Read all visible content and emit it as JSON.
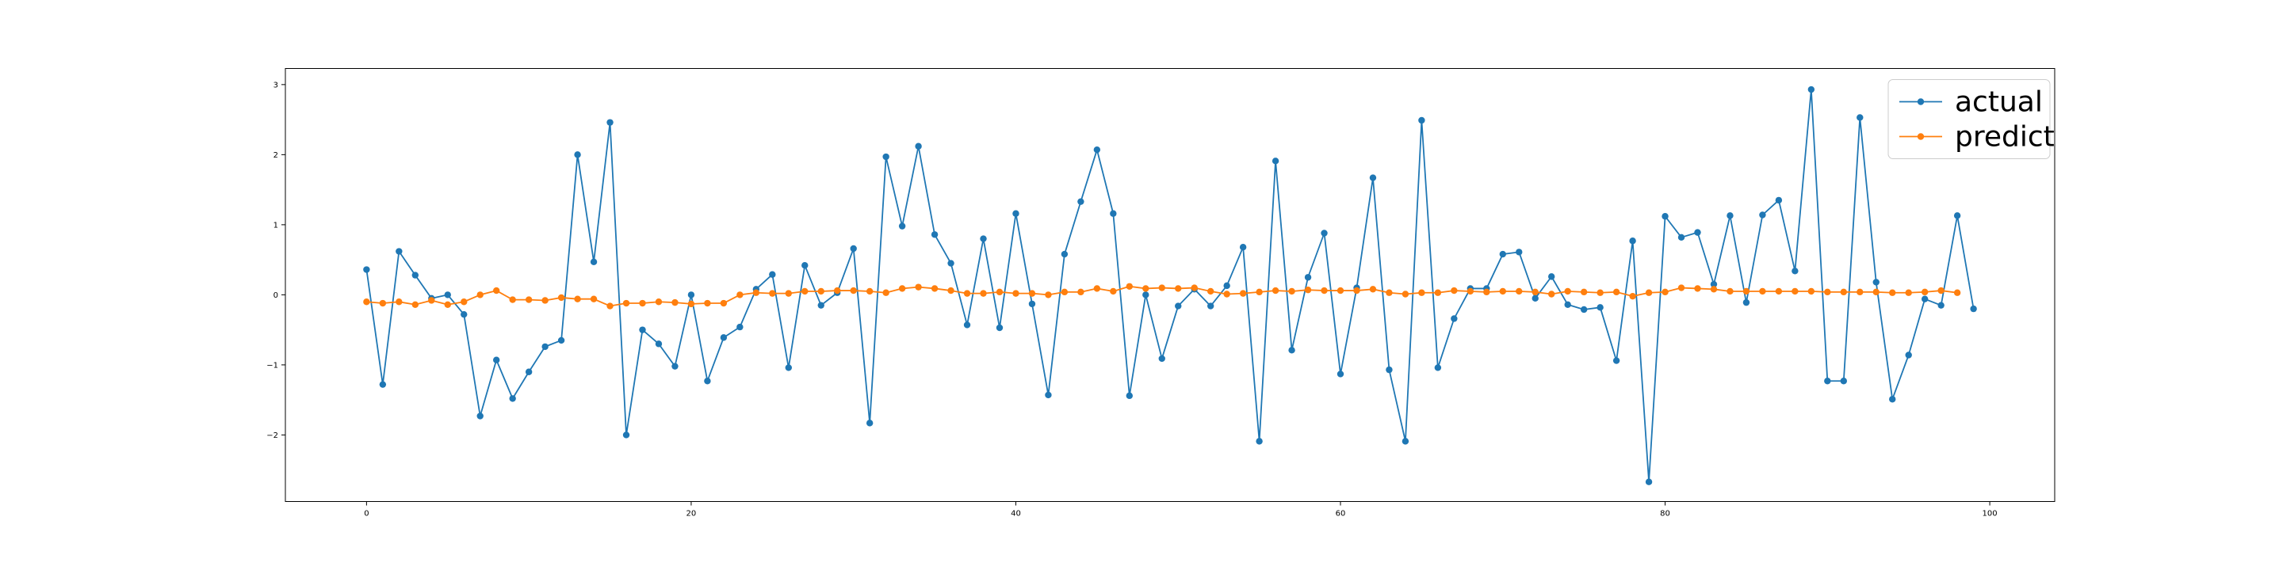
{
  "chart_data": {
    "type": "line",
    "title": "",
    "xlabel": "",
    "ylabel": "",
    "xlim": [
      -5,
      104
    ],
    "ylim": [
      -2.95,
      3.23
    ],
    "xticks": [
      0,
      20,
      40,
      60,
      80,
      100
    ],
    "yticks": [
      -2,
      -1,
      0,
      1,
      2,
      3
    ],
    "x_tick_labels": [
      "0",
      "20",
      "40",
      "60",
      "80",
      "100"
    ],
    "y_tick_labels": [
      "−2",
      "−1",
      "0",
      "1",
      "2",
      "3"
    ],
    "grid": false,
    "legend_position": "top-right",
    "series": [
      {
        "name": "actual",
        "color": "#1f77b4",
        "x": [
          0,
          1,
          2,
          3,
          4,
          5,
          6,
          7,
          8,
          9,
          10,
          11,
          12,
          13,
          14,
          15,
          16,
          17,
          18,
          19,
          20,
          21,
          22,
          23,
          24,
          25,
          26,
          27,
          28,
          29,
          30,
          31,
          32,
          33,
          34,
          35,
          36,
          37,
          38,
          39,
          40,
          41,
          42,
          43,
          44,
          45,
          46,
          47,
          48,
          49,
          50,
          51,
          52,
          53,
          54,
          55,
          56,
          57,
          58,
          59,
          60,
          61,
          62,
          63,
          64,
          65,
          66,
          67,
          68,
          69,
          70,
          71,
          72,
          73,
          74,
          75,
          76,
          77,
          78,
          79,
          80,
          81,
          82,
          83,
          84,
          85,
          86,
          87,
          88,
          89,
          90,
          91,
          92,
          93,
          94,
          95,
          96,
          97,
          98,
          99
        ],
        "values": [
          0.36,
          -1.28,
          0.62,
          0.28,
          -0.05,
          0.0,
          -0.28,
          -1.73,
          -0.93,
          -1.48,
          -1.1,
          -0.74,
          -0.65,
          2.0,
          0.47,
          2.46,
          -2.0,
          -0.5,
          -0.7,
          -1.02,
          0.0,
          -1.23,
          -0.61,
          -0.46,
          0.08,
          0.29,
          -1.04,
          0.42,
          -0.15,
          0.03,
          0.66,
          -1.83,
          1.97,
          0.98,
          2.12,
          0.86,
          0.45,
          -0.43,
          0.8,
          -0.47,
          1.16,
          -0.13,
          -1.43,
          0.58,
          1.33,
          2.07,
          1.16,
          -1.44,
          0.0,
          -0.91,
          -0.16,
          0.08,
          -0.16,
          0.13,
          0.68,
          -2.09,
          1.91,
          -0.79,
          0.25,
          0.88,
          -1.13,
          0.1,
          1.67,
          -1.07,
          -2.09,
          2.49,
          -1.04,
          -0.34,
          0.09,
          0.09,
          0.58,
          0.61,
          -0.05,
          0.26,
          -0.14,
          -0.21,
          -0.18,
          -0.94,
          0.77,
          -2.67,
          1.12,
          0.82,
          0.89,
          0.15,
          1.13,
          -0.11,
          1.14,
          1.35,
          0.34,
          2.93,
          -1.23,
          -1.23,
          2.53,
          0.18,
          -1.49,
          -0.86,
          -0.06,
          -0.15,
          1.13,
          -0.2
        ]
      },
      {
        "name": "predict",
        "color": "#ff7f0e",
        "x": [
          0,
          1,
          2,
          3,
          4,
          5,
          6,
          7,
          8,
          9,
          10,
          11,
          12,
          13,
          14,
          15,
          16,
          17,
          18,
          19,
          20,
          21,
          22,
          23,
          24,
          25,
          26,
          27,
          28,
          29,
          30,
          31,
          32,
          33,
          34,
          35,
          36,
          37,
          38,
          39,
          40,
          41,
          42,
          43,
          44,
          45,
          46,
          47,
          48,
          49,
          50,
          51,
          52,
          53,
          54,
          55,
          56,
          57,
          58,
          59,
          60,
          61,
          62,
          63,
          64,
          65,
          66,
          67,
          68,
          69,
          70,
          71,
          72,
          73,
          74,
          75,
          76,
          77,
          78,
          79,
          80,
          81,
          82,
          83,
          84,
          85,
          86,
          87,
          88,
          89,
          90,
          91,
          92,
          93,
          94,
          95,
          96,
          97,
          98
        ],
        "values": [
          -0.1,
          -0.12,
          -0.1,
          -0.14,
          -0.08,
          -0.14,
          -0.1,
          0.0,
          0.06,
          -0.07,
          -0.07,
          -0.08,
          -0.04,
          -0.06,
          -0.06,
          -0.16,
          -0.12,
          -0.12,
          -0.1,
          -0.11,
          -0.13,
          -0.12,
          -0.12,
          0.0,
          0.03,
          0.02,
          0.02,
          0.05,
          0.05,
          0.06,
          0.06,
          0.05,
          0.03,
          0.09,
          0.11,
          0.09,
          0.06,
          0.02,
          0.02,
          0.04,
          0.02,
          0.02,
          0.0,
          0.04,
          0.04,
          0.09,
          0.05,
          0.12,
          0.09,
          0.1,
          0.09,
          0.1,
          0.05,
          0.01,
          0.02,
          0.04,
          0.06,
          0.05,
          0.07,
          0.06,
          0.06,
          0.06,
          0.08,
          0.03,
          0.01,
          0.03,
          0.03,
          0.06,
          0.05,
          0.04,
          0.05,
          0.05,
          0.04,
          0.01,
          0.05,
          0.04,
          0.03,
          0.04,
          -0.02,
          0.03,
          0.04,
          0.1,
          0.09,
          0.08,
          0.05,
          0.05,
          0.05,
          0.05,
          0.05,
          0.05,
          0.04,
          0.04,
          0.04,
          0.04,
          0.03,
          0.03,
          0.04,
          0.06,
          0.03
        ]
      }
    ]
  }
}
